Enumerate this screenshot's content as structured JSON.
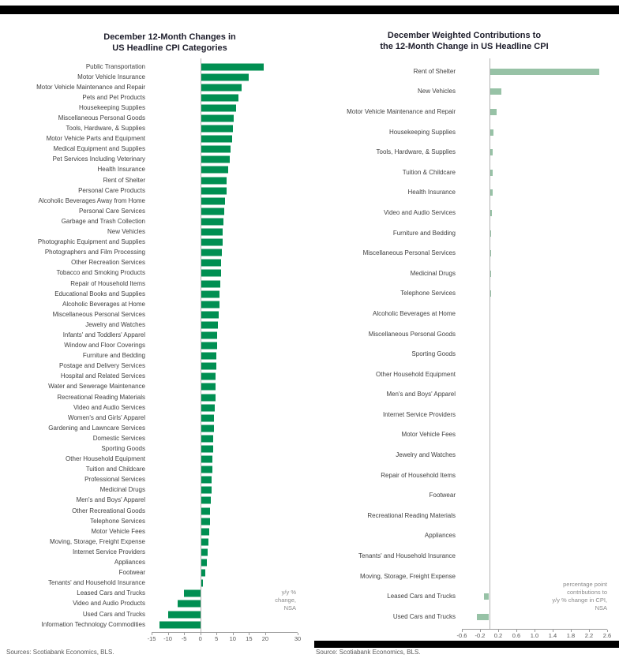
{
  "page": {
    "background": "#ffffff",
    "top_bar_color": "#000000",
    "bottom_bar_color": "#000000"
  },
  "chart_data": [
    {
      "type": "bar",
      "orientation": "horizontal",
      "title": "December 12-Month Changes in\nUS Headline CPI Categories",
      "xlabel": "",
      "ylabel": "",
      "xlim": [
        -15,
        30
      ],
      "xticks": [
        -15,
        -10,
        -5,
        0,
        5,
        10,
        15,
        20,
        30
      ],
      "xtick_labels": [
        "-15",
        "-10",
        "-5",
        "0",
        "5",
        "10",
        "15",
        "20",
        "30"
      ],
      "grid": false,
      "legend": "none",
      "bar_color": "#008f52",
      "annotation": "y/y %\nchange,\nNSA",
      "source": "Sources: Scotiabank Economics, BLS.",
      "categories": [
        "Public Transportation",
        "Motor Vehicle Insurance",
        "Motor Vehicle Maintenance and Repair",
        "Pets and Pet Products",
        "Housekeeping Supplies",
        "Miscellaneous Personal Goods",
        "Tools, Hardware, & Supplies",
        "Motor Vehicle Parts and Equipment",
        "Medical Equipment and Supplies",
        "Pet Services Including Veterinary",
        "Health Insurance",
        "Rent of Shelter",
        "Personal Care Products",
        "Alcoholic Beverages Away from Home",
        "Personal Care Services",
        "Garbage and Trash Collection",
        "New Vehicles",
        "Photographic Equipment and Supplies",
        "Photographers and Film Processing",
        "Other Recreation Services",
        "Tobacco and Smoking Products",
        "Repair of Household Items",
        "Educational Books and Supplies",
        "Alcoholic Beverages at Home",
        "Miscellaneous Personal Services",
        "Jewelry and Watches",
        "Infants' and Toddlers' Apparel",
        "Window and Floor Coverings",
        "Furniture and Bedding",
        "Postage and Delivery Services",
        "Hospital and Related Services",
        "Water and Sewerage Maintenance",
        "Recreational Reading Materials",
        "Video and Audio Services",
        "Women's and Girls' Apparel",
        "Gardening and Lawncare Services",
        "Domestic Services",
        "Sporting Goods",
        "Other Household Equipment",
        "Tuition and Childcare",
        "Professional Services",
        "Medicinal Drugs",
        "Men's and Boys' Apparel",
        "Other Recreational Goods",
        "Telephone Services",
        "Motor Vehicle Fees",
        "Moving, Storage, Freight Expense",
        "Internet Service Providers",
        "Appliances",
        "Footwear",
        "Tenants' and Household Insurance",
        "Leased Cars and Trucks",
        "Video and Audio Products",
        "Used Cars and Trucks",
        "Information Technology Commodities"
      ],
      "values": [
        19.5,
        15.0,
        12.7,
        11.8,
        11.0,
        10.4,
        10.0,
        9.8,
        9.4,
        9.0,
        8.5,
        8.2,
        8.0,
        7.6,
        7.4,
        7.2,
        7.0,
        6.9,
        6.6,
        6.4,
        6.3,
        6.1,
        5.9,
        5.8,
        5.6,
        5.4,
        5.3,
        5.2,
        5.0,
        4.9,
        4.8,
        4.7,
        4.6,
        4.5,
        4.3,
        4.2,
        4.0,
        3.9,
        3.8,
        3.7,
        3.5,
        3.4,
        3.2,
        3.0,
        2.9,
        2.8,
        2.5,
        2.3,
        2.0,
        1.5,
        0.8,
        -5.0,
        -7.0,
        -10.0,
        -12.5
      ]
    },
    {
      "type": "bar",
      "orientation": "horizontal",
      "title": "December Weighted Contributions to\nthe 12-Month Change in US Headline CPI",
      "xlabel": "",
      "ylabel": "",
      "xlim": [
        -0.6,
        2.6
      ],
      "xticks": [
        -0.6,
        -0.2,
        0.2,
        0.6,
        1.0,
        1.4,
        1.8,
        2.2,
        2.6
      ],
      "xtick_labels": [
        "-0.6",
        "-0.2",
        "0.2",
        "0.6",
        "1.0",
        "1.4",
        "1.8",
        "2.2",
        "2.6"
      ],
      "grid": false,
      "legend": "none",
      "bar_color": "#97c2a6",
      "annotation": "percentage point\ncontributions to\ny/y % change in CPI,\nNSA",
      "source": "Source: Scotiabank Economics, BLS.",
      "categories": [
        "Rent of Shelter",
        "New Vehicles",
        "Motor Vehicle Maintenance and Repair",
        "Housekeeping Supplies",
        "Tools, Hardware, & Supplies",
        "Tuition & Childcare",
        "Health Insurance",
        "Video and Audio Services",
        "Furniture and Bedding",
        "Miscellaneous Personal Services",
        "Medicinal Drugs",
        "Telephone Services",
        "Alcoholic Beverages at Home",
        "Miscellaneous Personal Goods",
        "Sporting Goods",
        "Other Household Equipment",
        "Men's and Boys' Apparel",
        "Internet Service Providers",
        "Motor Vehicle Fees",
        "Jewelry and Watches",
        "Repair of Household Items",
        "Footwear",
        "Recreational Reading Materials",
        "Appliances",
        "Tenants' and Household Insurance",
        "Moving, Storage, Freight Expense",
        "Leased Cars and Trucks",
        "Used Cars and Trucks"
      ],
      "values": [
        2.42,
        0.27,
        0.16,
        0.1,
        0.08,
        0.08,
        0.07,
        0.06,
        0.05,
        0.05,
        0.04,
        0.04,
        0.03,
        0.03,
        0.03,
        0.02,
        0.02,
        0.02,
        0.02,
        0.02,
        0.01,
        0.01,
        0.01,
        0.01,
        0.01,
        0.01,
        -0.11,
        -0.27
      ]
    }
  ]
}
